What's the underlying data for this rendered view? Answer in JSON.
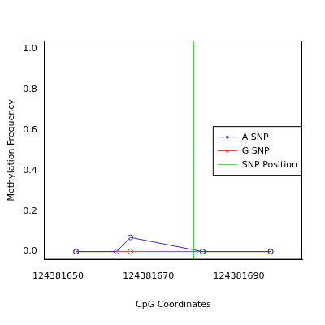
{
  "chart_data": {
    "type": "line",
    "x_label": "CpG Coordinates",
    "y_label": "Methylation Frequency",
    "x": [
      124381654,
      124381663,
      124381666,
      124381682,
      124381697
    ],
    "series": [
      {
        "name": "A SNP",
        "color": "#3333aa",
        "marker": "circle",
        "values": [
          0,
          0,
          0.07,
          0,
          0
        ]
      },
      {
        "name": "G SNP",
        "color": "#cc3333",
        "marker": "circle",
        "values": [
          0,
          0,
          0,
          0,
          0
        ]
      }
    ],
    "vline": {
      "name": "SNP Position",
      "x": 124381680,
      "color": "#33cc33"
    },
    "xlim": [
      124381647,
      124381704
    ],
    "xticks": [
      124381650,
      124381670,
      124381690
    ],
    "ylim": [
      -0.04,
      1.04
    ],
    "yticks": [
      {
        "value": 0,
        "label": "0.0"
      },
      {
        "value": 0.2,
        "label": "0.2"
      },
      {
        "value": 0.4,
        "label": "0.4"
      },
      {
        "value": 0.6,
        "label": "0.6"
      },
      {
        "value": 0.8,
        "label": "0.8"
      },
      {
        "value": 1,
        "label": "1.0"
      }
    ],
    "grid": false,
    "legend": "right"
  }
}
